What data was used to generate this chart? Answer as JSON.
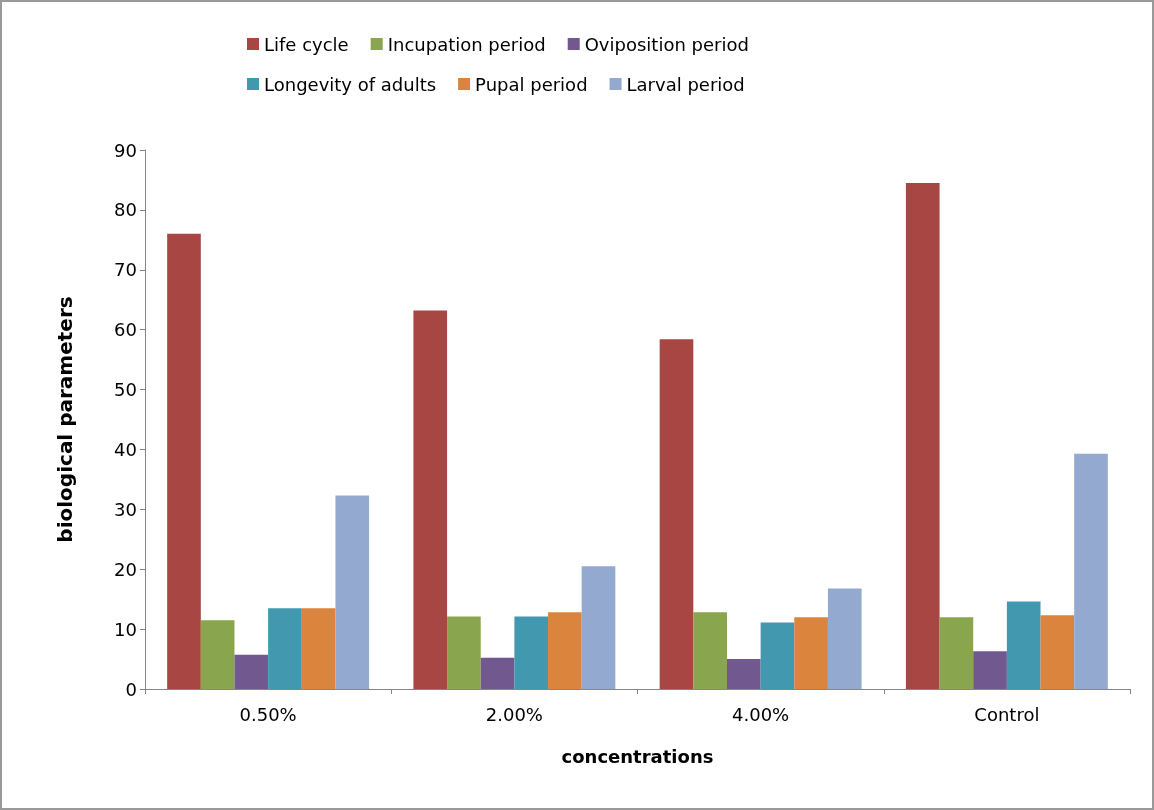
{
  "chart_data": {
    "type": "bar",
    "xlabel": "concentrations",
    "ylabel": "biological parameters",
    "categories": [
      "0.50%",
      "2.00%",
      "4.00%",
      "Control"
    ],
    "series": [
      {
        "name": "Life cycle",
        "color": "#a84644",
        "values": [
          76.0,
          63.2,
          58.4,
          84.5
        ]
      },
      {
        "name": "Incupation period",
        "color": "#89a54e",
        "values": [
          11.5,
          12.1,
          12.8,
          12.0
        ]
      },
      {
        "name": "Oviposition period",
        "color": "#71588f",
        "values": [
          5.7,
          5.2,
          5.0,
          6.3
        ]
      },
      {
        "name": "Longevity of adults",
        "color": "#4198af",
        "values": [
          13.5,
          12.1,
          11.1,
          14.6
        ]
      },
      {
        "name": "Pupal period",
        "color": "#db843d",
        "values": [
          13.5,
          12.8,
          12.0,
          12.3
        ]
      },
      {
        "name": "Larval period",
        "color": "#93a9cf",
        "values": [
          32.3,
          20.5,
          16.8,
          39.3
        ]
      }
    ],
    "ylim": [
      0,
      90
    ],
    "yticks": [
      0,
      10,
      20,
      30,
      40,
      50,
      60,
      70,
      80,
      90
    ],
    "grid": false,
    "legend": "top"
  }
}
